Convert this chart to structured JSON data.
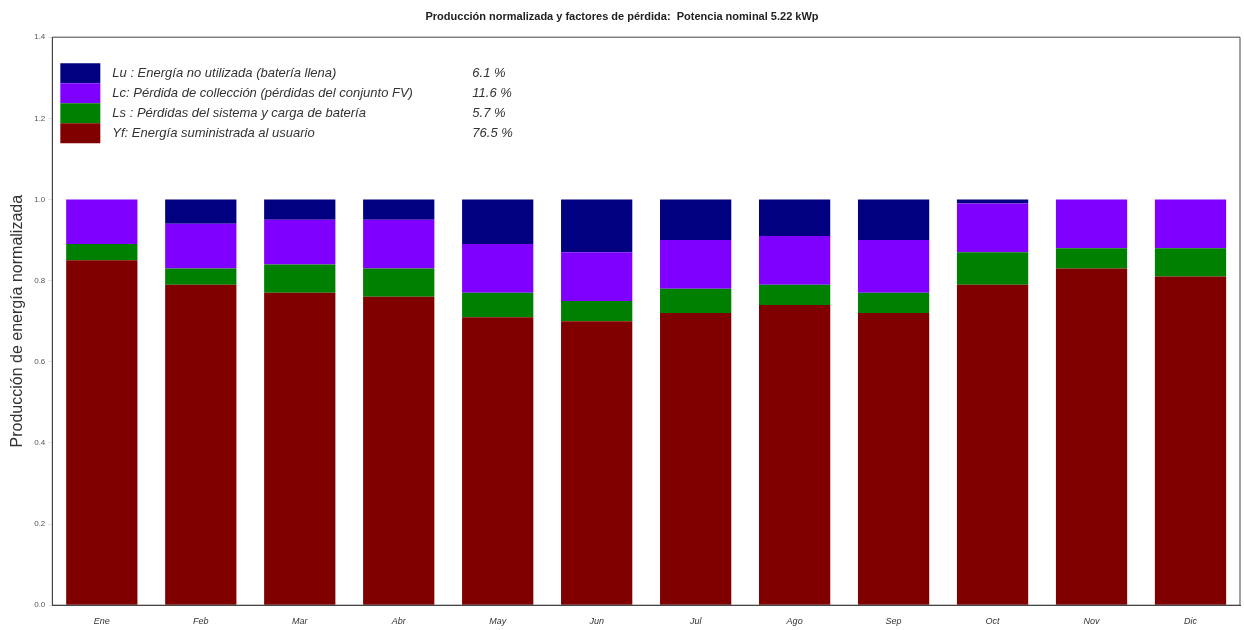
{
  "chart_data": {
    "type": "bar",
    "stacked": true,
    "title": "Producción normalizada y factores de pérdida:  Potencia nominal 5.22 kWp",
    "ylabel": "Producción de energía normalizada",
    "categories": [
      "Ene",
      "Feb",
      "Mar",
      "Abr",
      "May",
      "Jun",
      "Jul",
      "Ago",
      "Sep",
      "Oct",
      "Nov",
      "Dic"
    ],
    "series": [
      {
        "name": "Yf: Energía suministrada al usuario",
        "color": "#800000",
        "values": [
          0.85,
          0.79,
          0.77,
          0.76,
          0.71,
          0.7,
          0.72,
          0.74,
          0.72,
          0.79,
          0.83,
          0.81
        ]
      },
      {
        "name": "Ls : Pérdidas del sistema y carga de batería",
        "color": "#008000",
        "values": [
          0.04,
          0.04,
          0.07,
          0.07,
          0.06,
          0.05,
          0.06,
          0.05,
          0.05,
          0.08,
          0.05,
          0.07
        ]
      },
      {
        "name": "Lc: Pérdida de collección (pérdidas del conjunto FV)",
        "color": "#8000ff",
        "values": [
          0.11,
          0.11,
          0.11,
          0.12,
          0.12,
          0.12,
          0.12,
          0.12,
          0.13,
          0.12,
          0.12,
          0.12
        ]
      },
      {
        "name": "Lu : Energía no utilizada (batería llena)",
        "color": "#000080",
        "values": [
          0,
          0.06,
          0.05,
          0.05,
          0.11,
          0.13,
          0.1,
          0.09,
          0.1,
          0.01,
          0,
          0
        ]
      }
    ],
    "annotations": [
      "76.5 %",
      "5.7 %",
      "11.6 %",
      "6.1 %"
    ],
    "ylim": [
      0,
      1.4
    ],
    "yticks": [
      {
        "value": 0,
        "label": "0.0"
      },
      {
        "value": 0.2,
        "label": "0.2"
      },
      {
        "value": 0.4,
        "label": "0.4"
      },
      {
        "value": 0.6,
        "label": "0.6"
      },
      {
        "value": 0.8,
        "label": "0.8"
      },
      {
        "value": 1,
        "label": "1.0"
      },
      {
        "value": 1.2,
        "label": "1.2"
      },
      {
        "value": 1.4,
        "label": "1.4"
      }
    ],
    "grid": false,
    "legend": "top left"
  }
}
